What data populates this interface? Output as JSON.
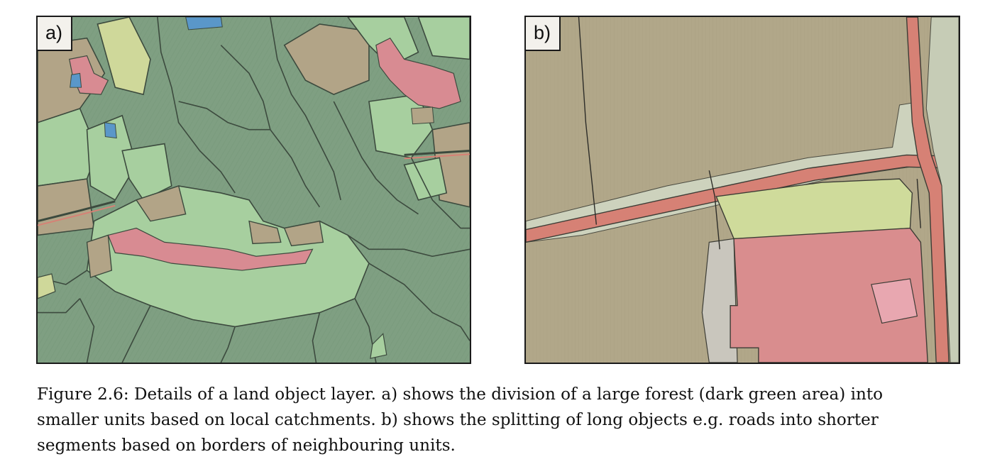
{
  "figure": {
    "panels": [
      {
        "label": "a)"
      },
      {
        "label": "b)"
      }
    ],
    "caption": {
      "line1": "Figure 2.6: Details of a land object layer. a) shows the division of a large forest (dark green area) into",
      "line2": "smaller units based on local catchments. b) shows the splitting of long objects e.g. roads into shorter",
      "line3": "segments based on borders of neighbouring units."
    }
  },
  "colors": {
    "forest": "#7f9f82",
    "light_green": "#a7cf9f",
    "field": "#b3a686",
    "built_up": "#d88b92",
    "water": "#5a97c9",
    "yellow_green": "#cfd89a",
    "road": "#d68175",
    "border": "#3c4a3e"
  }
}
